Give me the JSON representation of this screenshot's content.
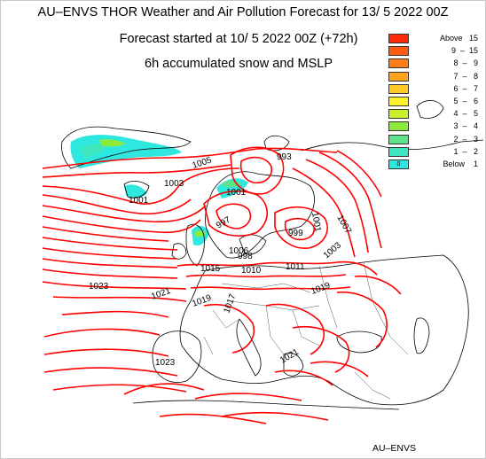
{
  "title_line1": "AU–ENVS THOR Weather and Air Pollution Forecast for 13/ 5 2022  00Z",
  "title_line2": "Forecast started at 10/ 5 2022  00Z (+72h)",
  "title_line3": "6h accumulated snow and MSLP",
  "footer": "AU–ENVS",
  "legend": [
    {
      "label": "Above   15",
      "color": "#ff2a0a",
      "swatch_text": ""
    },
    {
      "label": "9  –  15",
      "color": "#ff5a12",
      "swatch_text": ""
    },
    {
      "label": "8  –   9",
      "color": "#ff7d18",
      "swatch_text": ""
    },
    {
      "label": "7  –   8",
      "color": "#ffa21e",
      "swatch_text": ""
    },
    {
      "label": "6  –   7",
      "color": "#ffc928",
      "swatch_text": ""
    },
    {
      "label": "5  –   6",
      "color": "#fff02c",
      "swatch_text": ""
    },
    {
      "label": "4  –   5",
      "color": "#c8f02c",
      "swatch_text": ""
    },
    {
      "label": "3  –   4",
      "color": "#8eea3a",
      "swatch_text": ""
    },
    {
      "label": "2  –   3",
      "color": "#5ee28a",
      "swatch_text": ""
    },
    {
      "label": "1  –   2",
      "color": "#3ee6c0",
      "swatch_text": ""
    },
    {
      "label": "Below    1",
      "color": "#2ee8e0",
      "swatch_text": "0"
    }
  ],
  "isobar_labels": [
    "1005",
    "1003",
    "1001",
    "1001",
    "993",
    "997",
    "1007",
    "999",
    "1001",
    "998",
    "1003",
    "1006",
    "1015",
    "1010",
    "1011",
    "1023",
    "1021",
    "1019",
    "1017",
    "1019",
    "1023",
    "1021"
  ],
  "colors": {
    "isobar": "#ff0000",
    "coastline": "#000000",
    "border": "#555555"
  }
}
